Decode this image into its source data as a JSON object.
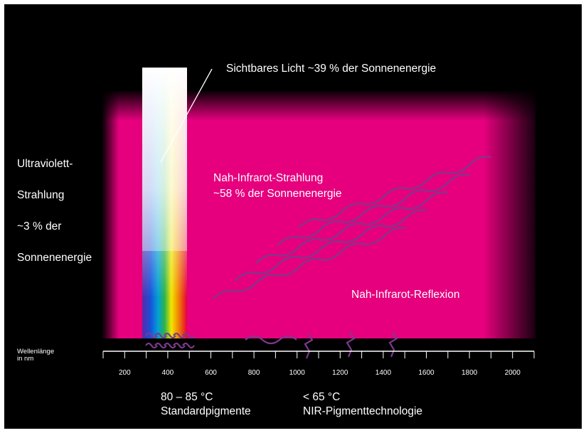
{
  "labels": {
    "visible_light": "Sichtbares Licht ~39 % der Sonnenenergie",
    "uv_line1": "Ultraviolett-",
    "uv_line2": "Strahlung",
    "uv_line3": "~3 % der",
    "uv_line4": "Sonnenenergie",
    "nir_line1": "Nah-Infrarot-Strahlung",
    "nir_line2": "~58 % der Sonnenenergie",
    "nir_reflection": "Nah-Infrarot-Reflexion",
    "axis_line1": "Wellenlänge",
    "axis_line2": "in nm",
    "standard_temp": "80 – 85 °C",
    "standard_name": "Standardpigmente",
    "nir_temp": "< 65 °C",
    "nir_name": "NIR-Pigmenttechnologie"
  },
  "axis": {
    "ticks": [
      "200",
      "400",
      "600",
      "800",
      "1000",
      "1200",
      "1400",
      "1600",
      "1800",
      "2000"
    ],
    "min": 100,
    "max": 2100,
    "minor_step": 100
  },
  "colors": {
    "background": "#000000",
    "field": "#e6007e",
    "waves": "#7a3a8c",
    "text": "#ffffff"
  }
}
